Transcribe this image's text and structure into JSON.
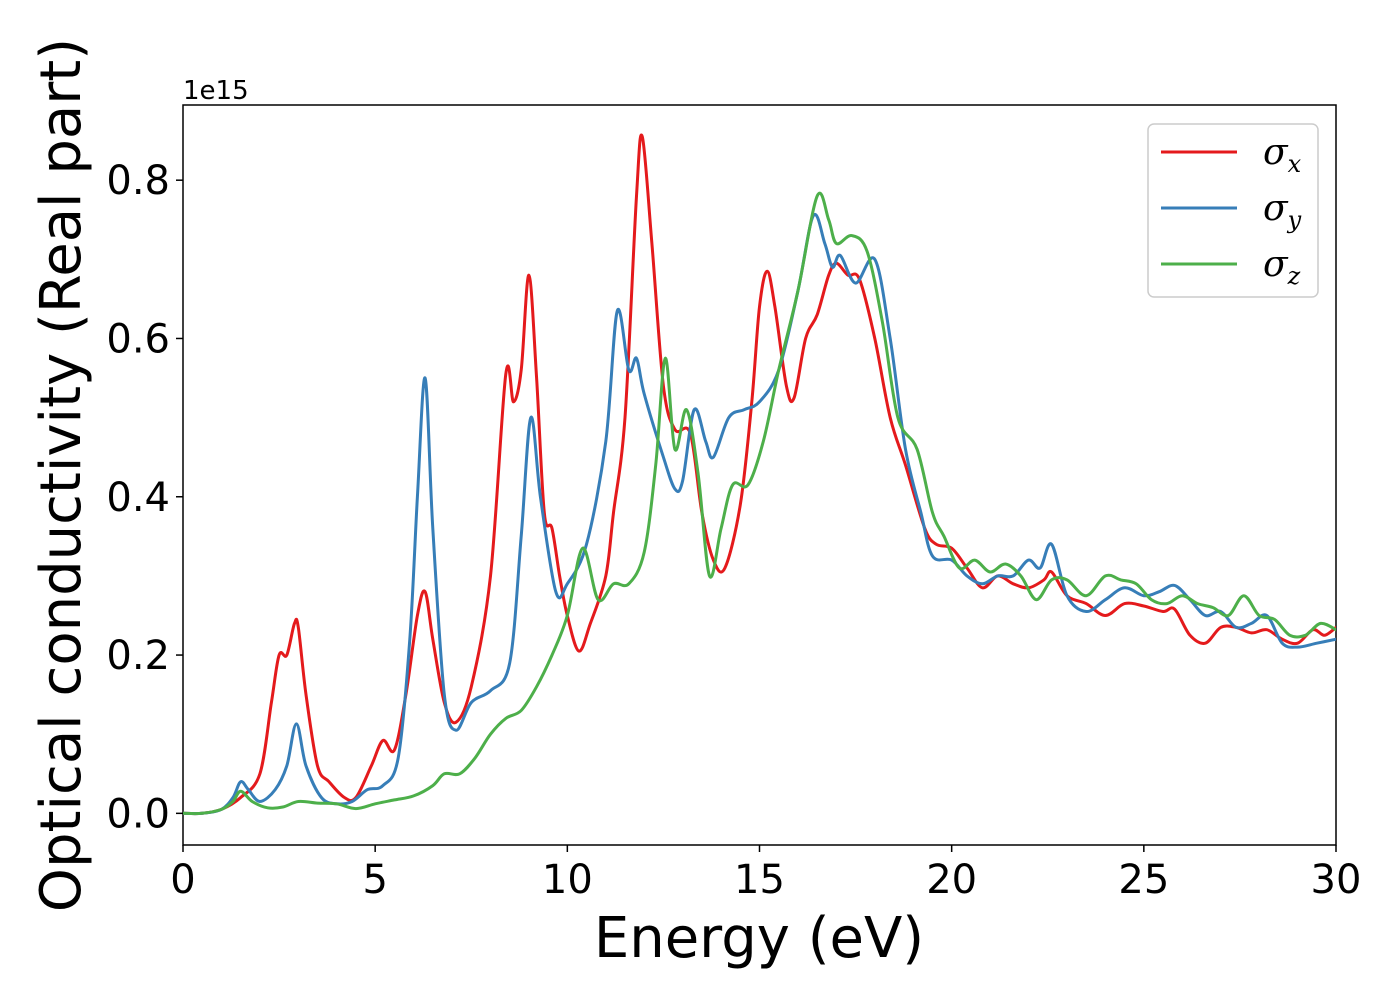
{
  "chart_data": {
    "type": "line",
    "xlabel": "Energy (eV)",
    "ylabel": "Optical conductivity (Real part)",
    "y_offset_label": "1e15",
    "xlim": [
      0,
      30
    ],
    "ylim": [
      -0.04,
      0.895
    ],
    "x_ticks": [
      0,
      5,
      10,
      15,
      20,
      25,
      30
    ],
    "x_tick_labels": [
      "0",
      "5",
      "10",
      "15",
      "20",
      "25",
      "30"
    ],
    "y_ticks": [
      0.0,
      0.2,
      0.4,
      0.6,
      0.8
    ],
    "y_tick_labels": [
      "0.0",
      "0.2",
      "0.4",
      "0.6",
      "0.8"
    ],
    "grid": false,
    "legend_position": "top-right",
    "series": [
      {
        "name": "σx",
        "symbol": "σ",
        "subscript": "x",
        "color": "#e41a1c",
        "points": [
          [
            0,
            0
          ],
          [
            0.5,
            0
          ],
          [
            1,
            0.005
          ],
          [
            1.5,
            0.02
          ],
          [
            2,
            0.05
          ],
          [
            2.3,
            0.14
          ],
          [
            2.5,
            0.2
          ],
          [
            2.7,
            0.2
          ],
          [
            2.9,
            0.24
          ],
          [
            3,
            0.235
          ],
          [
            3.2,
            0.15
          ],
          [
            3.5,
            0.06
          ],
          [
            3.8,
            0.04
          ],
          [
            4.2,
            0.02
          ],
          [
            4.5,
            0.02
          ],
          [
            4.9,
            0.06
          ],
          [
            5.2,
            0.092
          ],
          [
            5.5,
            0.08
          ],
          [
            5.8,
            0.15
          ],
          [
            6.1,
            0.25
          ],
          [
            6.3,
            0.28
          ],
          [
            6.5,
            0.22
          ],
          [
            6.8,
            0.14
          ],
          [
            7.1,
            0.115
          ],
          [
            7.5,
            0.16
          ],
          [
            8,
            0.3
          ],
          [
            8.4,
            0.555
          ],
          [
            8.6,
            0.52
          ],
          [
            8.8,
            0.56
          ],
          [
            9,
            0.68
          ],
          [
            9.2,
            0.55
          ],
          [
            9.4,
            0.38
          ],
          [
            9.6,
            0.36
          ],
          [
            9.8,
            0.3
          ],
          [
            10,
            0.25
          ],
          [
            10.3,
            0.205
          ],
          [
            10.6,
            0.24
          ],
          [
            11,
            0.3
          ],
          [
            11.2,
            0.38
          ],
          [
            11.5,
            0.5
          ],
          [
            11.8,
            0.78
          ],
          [
            11.95,
            0.855
          ],
          [
            12.2,
            0.72
          ],
          [
            12.5,
            0.54
          ],
          [
            12.8,
            0.485
          ],
          [
            13.2,
            0.48
          ],
          [
            13.5,
            0.38
          ],
          [
            13.8,
            0.32
          ],
          [
            14.1,
            0.31
          ],
          [
            14.5,
            0.39
          ],
          [
            14.8,
            0.52
          ],
          [
            15,
            0.64
          ],
          [
            15.2,
            0.685
          ],
          [
            15.4,
            0.64
          ],
          [
            15.7,
            0.54
          ],
          [
            15.9,
            0.525
          ],
          [
            16.2,
            0.6
          ],
          [
            16.5,
            0.63
          ],
          [
            16.8,
            0.68
          ],
          [
            17,
            0.695
          ],
          [
            17.3,
            0.68
          ],
          [
            17.6,
            0.675
          ],
          [
            18,
            0.6
          ],
          [
            18.4,
            0.5
          ],
          [
            18.8,
            0.44
          ],
          [
            19.3,
            0.36
          ],
          [
            19.6,
            0.34
          ],
          [
            20,
            0.335
          ],
          [
            20.4,
            0.31
          ],
          [
            20.8,
            0.285
          ],
          [
            21.2,
            0.3
          ],
          [
            21.6,
            0.29
          ],
          [
            22,
            0.285
          ],
          [
            22.4,
            0.295
          ],
          [
            22.6,
            0.305
          ],
          [
            23,
            0.275
          ],
          [
            23.5,
            0.265
          ],
          [
            24,
            0.25
          ],
          [
            24.5,
            0.265
          ],
          [
            25,
            0.262
          ],
          [
            25.5,
            0.255
          ],
          [
            25.8,
            0.258
          ],
          [
            26.2,
            0.225
          ],
          [
            26.6,
            0.215
          ],
          [
            27,
            0.235
          ],
          [
            27.4,
            0.235
          ],
          [
            27.8,
            0.228
          ],
          [
            28.2,
            0.232
          ],
          [
            28.6,
            0.22
          ],
          [
            29,
            0.215
          ],
          [
            29.4,
            0.232
          ],
          [
            29.7,
            0.225
          ],
          [
            30,
            0.235
          ]
        ]
      },
      {
        "name": "σy",
        "symbol": "σ",
        "subscript": "y",
        "color": "#377eb8",
        "points": [
          [
            0,
            0
          ],
          [
            0.5,
            0
          ],
          [
            1,
            0.005
          ],
          [
            1.3,
            0.02
          ],
          [
            1.5,
            0.04
          ],
          [
            1.7,
            0.03
          ],
          [
            2,
            0.015
          ],
          [
            2.4,
            0.03
          ],
          [
            2.7,
            0.06
          ],
          [
            2.95,
            0.113
          ],
          [
            3.2,
            0.06
          ],
          [
            3.6,
            0.02
          ],
          [
            4,
            0.012
          ],
          [
            4.4,
            0.015
          ],
          [
            4.8,
            0.03
          ],
          [
            5.2,
            0.035
          ],
          [
            5.6,
            0.07
          ],
          [
            5.9,
            0.22
          ],
          [
            6.1,
            0.4
          ],
          [
            6.3,
            0.55
          ],
          [
            6.5,
            0.36
          ],
          [
            6.8,
            0.15
          ],
          [
            7.1,
            0.105
          ],
          [
            7.5,
            0.14
          ],
          [
            8,
            0.155
          ],
          [
            8.5,
            0.19
          ],
          [
            8.8,
            0.35
          ],
          [
            9.05,
            0.5
          ],
          [
            9.3,
            0.4
          ],
          [
            9.7,
            0.28
          ],
          [
            10,
            0.29
          ],
          [
            10.5,
            0.34
          ],
          [
            11,
            0.47
          ],
          [
            11.3,
            0.635
          ],
          [
            11.6,
            0.56
          ],
          [
            11.8,
            0.575
          ],
          [
            12,
            0.53
          ],
          [
            12.5,
            0.45
          ],
          [
            12.8,
            0.41
          ],
          [
            13,
            0.42
          ],
          [
            13.3,
            0.51
          ],
          [
            13.6,
            0.47
          ],
          [
            13.8,
            0.45
          ],
          [
            14.2,
            0.5
          ],
          [
            14.6,
            0.51
          ],
          [
            15,
            0.52
          ],
          [
            15.5,
            0.56
          ],
          [
            16,
            0.66
          ],
          [
            16.4,
            0.755
          ],
          [
            16.7,
            0.72
          ],
          [
            16.9,
            0.69
          ],
          [
            17.1,
            0.705
          ],
          [
            17.5,
            0.67
          ],
          [
            18,
            0.7
          ],
          [
            18.4,
            0.6
          ],
          [
            18.8,
            0.46
          ],
          [
            19.2,
            0.38
          ],
          [
            19.5,
            0.325
          ],
          [
            20,
            0.32
          ],
          [
            20.4,
            0.3
          ],
          [
            20.8,
            0.29
          ],
          [
            21.2,
            0.3
          ],
          [
            21.6,
            0.3
          ],
          [
            22,
            0.32
          ],
          [
            22.3,
            0.31
          ],
          [
            22.6,
            0.34
          ],
          [
            23,
            0.275
          ],
          [
            23.5,
            0.255
          ],
          [
            24,
            0.27
          ],
          [
            24.5,
            0.285
          ],
          [
            25,
            0.275
          ],
          [
            25.4,
            0.28
          ],
          [
            25.8,
            0.288
          ],
          [
            26.2,
            0.27
          ],
          [
            26.6,
            0.25
          ],
          [
            27,
            0.255
          ],
          [
            27.4,
            0.235
          ],
          [
            27.8,
            0.24
          ],
          [
            28.2,
            0.25
          ],
          [
            28.6,
            0.215
          ],
          [
            29,
            0.21
          ],
          [
            29.5,
            0.215
          ],
          [
            30,
            0.22
          ]
        ]
      },
      {
        "name": "σz",
        "symbol": "σ",
        "subscript": "z",
        "color": "#4daf4a",
        "points": [
          [
            0,
            0
          ],
          [
            0.5,
            0
          ],
          [
            1,
            0.005
          ],
          [
            1.3,
            0.015
          ],
          [
            1.5,
            0.028
          ],
          [
            1.8,
            0.015
          ],
          [
            2.2,
            0.007
          ],
          [
            2.6,
            0.008
          ],
          [
            3,
            0.015
          ],
          [
            3.5,
            0.013
          ],
          [
            4,
            0.012
          ],
          [
            4.5,
            0.006
          ],
          [
            5,
            0.012
          ],
          [
            5.5,
            0.017
          ],
          [
            6,
            0.022
          ],
          [
            6.5,
            0.035
          ],
          [
            6.8,
            0.05
          ],
          [
            7.2,
            0.05
          ],
          [
            7.6,
            0.07
          ],
          [
            8,
            0.1
          ],
          [
            8.4,
            0.12
          ],
          [
            8.8,
            0.13
          ],
          [
            9.2,
            0.16
          ],
          [
            9.6,
            0.2
          ],
          [
            10,
            0.25
          ],
          [
            10.4,
            0.335
          ],
          [
            10.8,
            0.27
          ],
          [
            11.2,
            0.29
          ],
          [
            11.6,
            0.29
          ],
          [
            12,
            0.33
          ],
          [
            12.3,
            0.44
          ],
          [
            12.55,
            0.575
          ],
          [
            12.8,
            0.46
          ],
          [
            13.1,
            0.51
          ],
          [
            13.4,
            0.43
          ],
          [
            13.7,
            0.3
          ],
          [
            14,
            0.36
          ],
          [
            14.3,
            0.415
          ],
          [
            14.7,
            0.415
          ],
          [
            15.1,
            0.47
          ],
          [
            15.5,
            0.56
          ],
          [
            16,
            0.66
          ],
          [
            16.5,
            0.78
          ],
          [
            16.8,
            0.75
          ],
          [
            17,
            0.72
          ],
          [
            17.4,
            0.73
          ],
          [
            17.8,
            0.71
          ],
          [
            18.2,
            0.62
          ],
          [
            18.6,
            0.5
          ],
          [
            19.1,
            0.46
          ],
          [
            19.5,
            0.38
          ],
          [
            19.8,
            0.35
          ],
          [
            20.2,
            0.31
          ],
          [
            20.6,
            0.32
          ],
          [
            21,
            0.305
          ],
          [
            21.4,
            0.315
          ],
          [
            21.8,
            0.3
          ],
          [
            22.2,
            0.27
          ],
          [
            22.6,
            0.295
          ],
          [
            23,
            0.295
          ],
          [
            23.5,
            0.275
          ],
          [
            24,
            0.3
          ],
          [
            24.4,
            0.295
          ],
          [
            24.8,
            0.29
          ],
          [
            25.2,
            0.27
          ],
          [
            25.6,
            0.265
          ],
          [
            26,
            0.275
          ],
          [
            26.4,
            0.265
          ],
          [
            26.8,
            0.26
          ],
          [
            27.2,
            0.25
          ],
          [
            27.6,
            0.275
          ],
          [
            28,
            0.25
          ],
          [
            28.4,
            0.245
          ],
          [
            28.8,
            0.225
          ],
          [
            29.2,
            0.225
          ],
          [
            29.6,
            0.24
          ],
          [
            30,
            0.232
          ]
        ]
      }
    ]
  }
}
